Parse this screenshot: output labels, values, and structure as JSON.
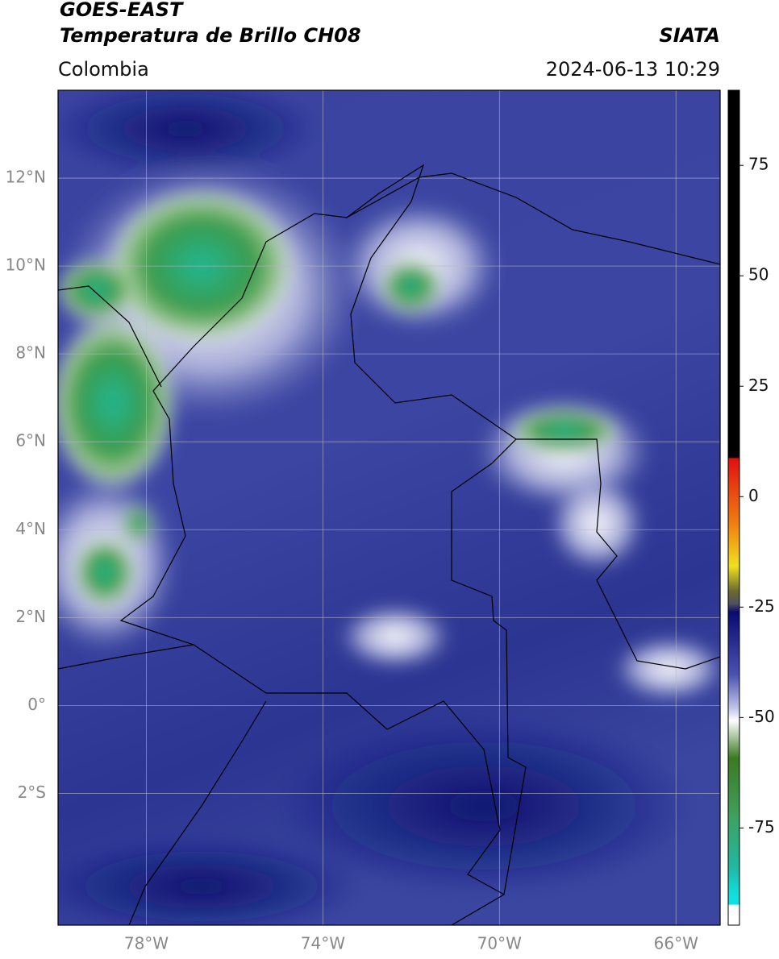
{
  "header": {
    "title": "GOES-EAST",
    "subtitle": "Temperatura de Brillo CH08",
    "agency": "SIATA",
    "region": "Colombia",
    "timestamp": "2024-06-13 10:29"
  },
  "map": {
    "xlim": [
      -80,
      -65
    ],
    "ylim": [
      -5,
      14
    ],
    "grid": true,
    "xticks": [
      {
        "value": -78,
        "label": "78°W"
      },
      {
        "value": -74,
        "label": "74°W"
      },
      {
        "value": -70,
        "label": "70°W"
      },
      {
        "value": -66,
        "label": "66°W"
      }
    ],
    "yticks": [
      {
        "value": 12,
        "label": "12°N"
      },
      {
        "value": 10,
        "label": "10°N"
      },
      {
        "value": 8,
        "label": "8°N"
      },
      {
        "value": 6,
        "label": "6°N"
      },
      {
        "value": 4,
        "label": "4°N"
      },
      {
        "value": 2,
        "label": "2°N"
      },
      {
        "value": 0,
        "label": "0°"
      },
      {
        "value": -2,
        "label": "2°S"
      }
    ]
  },
  "colorbar": {
    "lim": [
      -97,
      92
    ],
    "ticks": [
      75,
      50,
      25,
      0,
      -25,
      -50,
      -75
    ]
  }
}
